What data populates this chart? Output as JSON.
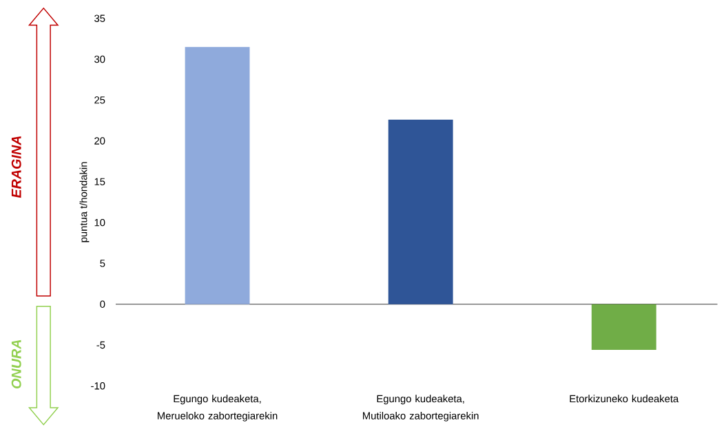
{
  "chart_data": {
    "type": "bar",
    "ylabel": "puntua t/hondakin",
    "categories": [
      "Egungo kudeaketa, Merueloko zabortegiarekin",
      "Egungo kudeaketa, Mutiloako zabortegiarekin",
      "Etorkizuneko kudeaketa"
    ],
    "values": [
      31.5,
      22.6,
      -5.6
    ],
    "colors": [
      "#8faadc",
      "#2f5597",
      "#70ad47"
    ],
    "ylim": [
      -10,
      35
    ],
    "yticks": [
      -10,
      -5,
      0,
      5,
      10,
      15,
      20,
      25,
      30,
      35
    ],
    "annotations": [
      "ERAGINA",
      "ONURA"
    ]
  }
}
